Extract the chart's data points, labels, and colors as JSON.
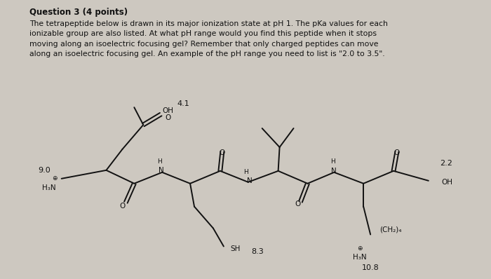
{
  "bg_color": "#cdc8c0",
  "title": "Question 3 (4 points)",
  "body_text": [
    "The tetrapeptide below is drawn in its major ionization state at pH 1. The pKa values for each",
    "ionizable group are also listed. At what pH range would you find this peptide when it stops",
    "moving along an isoelectric focusing gel? Remember that only charged peptides can move",
    "along an isoelectric focusing gel. An example of the pH range you need to list is \"2.0 to 3.5\"."
  ],
  "font_color": "#111111",
  "title_fontsize": 8.5,
  "body_fontsize": 7.8,
  "mol_fontsize": 7.5,
  "mol_fontsize_sm": 6.5,
  "mol_fontsize_pka": 8.0,
  "lw": 1.4
}
